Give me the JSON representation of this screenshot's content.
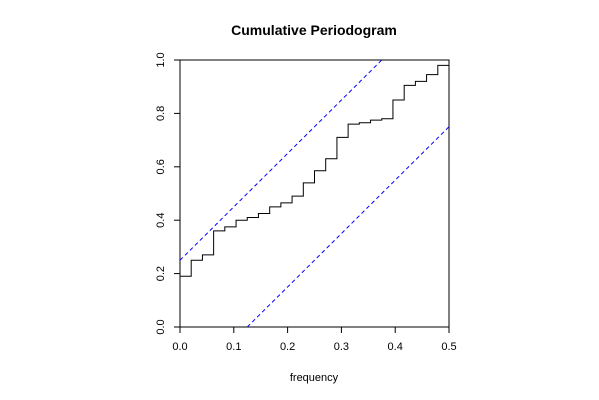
{
  "chart_data": {
    "type": "line",
    "title": "Cumulative Periodogram",
    "xlabel": "frequency",
    "ylabel": "",
    "xlim": [
      0.0,
      0.5
    ],
    "ylim": [
      0.0,
      1.0
    ],
    "x_ticks": [
      "0.0",
      "0.1",
      "0.2",
      "0.3",
      "0.4",
      "0.5"
    ],
    "y_ticks": [
      "0.0",
      "0.2",
      "0.4",
      "0.6",
      "0.8",
      "1.0"
    ],
    "grid": false,
    "series": [
      {
        "style": "step",
        "color": "#000000",
        "x": [
          0.0,
          0.0208,
          0.0417,
          0.0625,
          0.0833,
          0.1042,
          0.125,
          0.1458,
          0.1667,
          0.1875,
          0.2083,
          0.2292,
          0.25,
          0.2708,
          0.2917,
          0.3125,
          0.3333,
          0.3542,
          0.375,
          0.3958,
          0.4167,
          0.4375,
          0.4583,
          0.4792
        ],
        "y": [
          0.19,
          0.25,
          0.27,
          0.36,
          0.375,
          0.4,
          0.41,
          0.425,
          0.45,
          0.465,
          0.49,
          0.54,
          0.585,
          0.63,
          0.71,
          0.76,
          0.765,
          0.775,
          0.78,
          0.85,
          0.905,
          0.92,
          0.945,
          0.98
        ]
      },
      {
        "style": "dashed",
        "color": "#0000ff",
        "x": [
          0.0,
          0.375
        ],
        "y": [
          0.25,
          1.0
        ]
      },
      {
        "style": "dashed",
        "color": "#0000ff",
        "x": [
          0.125,
          0.5
        ],
        "y": [
          0.0,
          0.75
        ]
      }
    ]
  }
}
